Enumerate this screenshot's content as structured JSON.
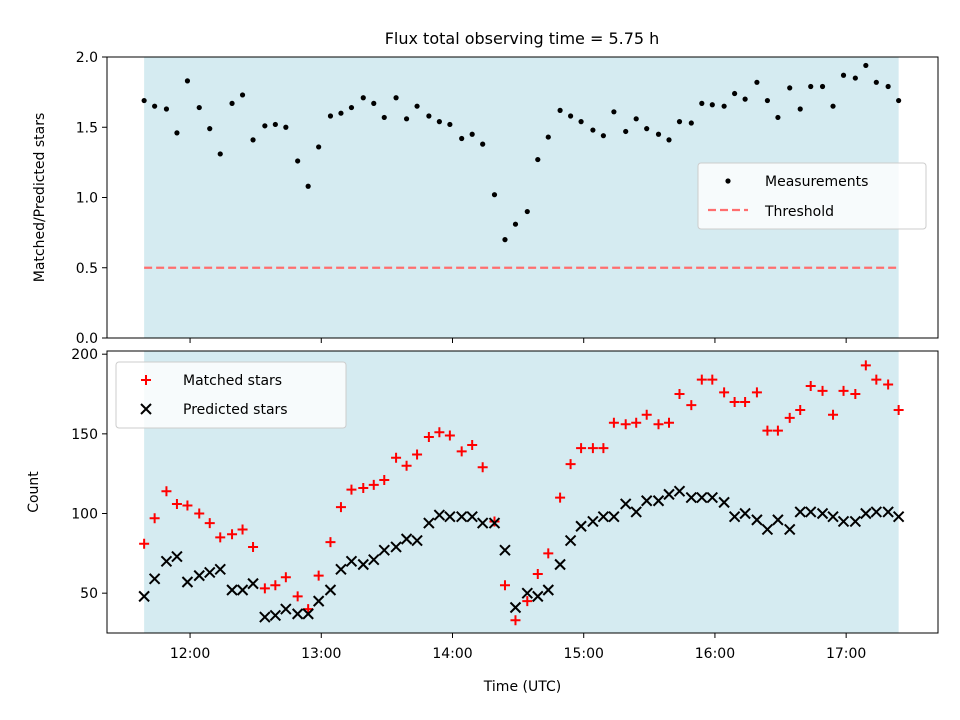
{
  "title": "Flux total observing time = 5.75 h",
  "colors": {
    "background_shade": "#d5ebf1",
    "matched": "#ff0000",
    "predicted": "#000000",
    "threshold": "#ff6e6e",
    "measurements": "#000000"
  },
  "chart_data": [
    {
      "type": "scatter",
      "ylabel": "Matched/Predicted stars",
      "ylim": [
        0,
        2.0
      ],
      "yticks": [
        {
          "v": 0.0,
          "label": "0.0"
        },
        {
          "v": 0.5,
          "label": "0.5"
        },
        {
          "v": 1.0,
          "label": "1.0"
        },
        {
          "v": 1.5,
          "label": "1.5"
        },
        {
          "v": 2.0,
          "label": "2.0"
        }
      ],
      "xlim_hours": [
        11.367,
        17.7
      ],
      "shaded_x_hours": [
        11.65,
        17.4
      ],
      "threshold": 0.5,
      "legend": {
        "position": "center-right",
        "entries": [
          "Measurements",
          "Threshold"
        ]
      },
      "series": [
        {
          "name": "Measurements",
          "marker": "dot",
          "points": [
            [
              11.65,
              1.69
            ],
            [
              11.73,
              1.65
            ],
            [
              11.82,
              1.63
            ],
            [
              11.9,
              1.46
            ],
            [
              11.98,
              1.83
            ],
            [
              12.07,
              1.64
            ],
            [
              12.15,
              1.49
            ],
            [
              12.23,
              1.31
            ],
            [
              12.32,
              1.67
            ],
            [
              12.4,
              1.73
            ],
            [
              12.48,
              1.41
            ],
            [
              12.57,
              1.51
            ],
            [
              12.65,
              1.52
            ],
            [
              12.73,
              1.5
            ],
            [
              12.82,
              1.26
            ],
            [
              12.9,
              1.08
            ],
            [
              12.98,
              1.36
            ],
            [
              13.07,
              1.58
            ],
            [
              13.15,
              1.6
            ],
            [
              13.23,
              1.64
            ],
            [
              13.32,
              1.71
            ],
            [
              13.4,
              1.67
            ],
            [
              13.48,
              1.57
            ],
            [
              13.57,
              1.71
            ],
            [
              13.65,
              1.56
            ],
            [
              13.73,
              1.65
            ],
            [
              13.82,
              1.58
            ],
            [
              13.9,
              1.54
            ],
            [
              13.98,
              1.52
            ],
            [
              14.07,
              1.42
            ],
            [
              14.15,
              1.45
            ],
            [
              14.23,
              1.38
            ],
            [
              14.32,
              1.02
            ],
            [
              14.4,
              0.7
            ],
            [
              14.48,
              0.81
            ],
            [
              14.57,
              0.9
            ],
            [
              14.65,
              1.27
            ],
            [
              14.73,
              1.43
            ],
            [
              14.82,
              1.62
            ],
            [
              14.9,
              1.58
            ],
            [
              14.98,
              1.54
            ],
            [
              15.07,
              1.48
            ],
            [
              15.15,
              1.44
            ],
            [
              15.23,
              1.61
            ],
            [
              15.32,
              1.47
            ],
            [
              15.4,
              1.56
            ],
            [
              15.48,
              1.49
            ],
            [
              15.57,
              1.45
            ],
            [
              15.65,
              1.41
            ],
            [
              15.73,
              1.54
            ],
            [
              15.82,
              1.53
            ],
            [
              15.9,
              1.67
            ],
            [
              15.98,
              1.66
            ],
            [
              16.07,
              1.65
            ],
            [
              16.15,
              1.74
            ],
            [
              16.23,
              1.7
            ],
            [
              16.32,
              1.82
            ],
            [
              16.4,
              1.69
            ],
            [
              16.48,
              1.57
            ],
            [
              16.57,
              1.78
            ],
            [
              16.65,
              1.63
            ],
            [
              16.73,
              1.79
            ],
            [
              16.82,
              1.79
            ],
            [
              16.9,
              1.65
            ],
            [
              16.98,
              1.87
            ],
            [
              17.07,
              1.85
            ],
            [
              17.15,
              1.94
            ],
            [
              17.23,
              1.82
            ],
            [
              17.32,
              1.79
            ],
            [
              17.4,
              1.69
            ]
          ]
        },
        {
          "name": "Threshold",
          "style": "dashed",
          "value": 0.5
        }
      ]
    },
    {
      "type": "scatter",
      "xlabel": "Time (UTC)",
      "ylabel": "Count",
      "ylim": [
        25,
        202
      ],
      "yticks": [
        {
          "v": 50,
          "label": "50"
        },
        {
          "v": 100,
          "label": "100"
        },
        {
          "v": 150,
          "label": "150"
        },
        {
          "v": 200,
          "label": "200"
        }
      ],
      "xticks": [
        {
          "v": 12,
          "label": "12:00"
        },
        {
          "v": 13,
          "label": "13:00"
        },
        {
          "v": 14,
          "label": "14:00"
        },
        {
          "v": 15,
          "label": "15:00"
        },
        {
          "v": 16,
          "label": "16:00"
        },
        {
          "v": 17,
          "label": "17:00"
        }
      ],
      "xlim_hours": [
        11.367,
        17.7
      ],
      "shaded_x_hours": [
        11.65,
        17.4
      ],
      "legend": {
        "position": "top-left",
        "entries": [
          "Matched stars",
          "Predicted stars"
        ]
      },
      "series": [
        {
          "name": "Matched stars",
          "marker": "plus",
          "points": [
            [
              11.65,
              81
            ],
            [
              11.73,
              97
            ],
            [
              11.82,
              114
            ],
            [
              11.9,
              106
            ],
            [
              11.98,
              105
            ],
            [
              12.07,
              100
            ],
            [
              12.15,
              94
            ],
            [
              12.23,
              85
            ],
            [
              12.32,
              87
            ],
            [
              12.4,
              90
            ],
            [
              12.48,
              79
            ],
            [
              12.57,
              53
            ],
            [
              12.65,
              55
            ],
            [
              12.73,
              60
            ],
            [
              12.82,
              48
            ],
            [
              12.9,
              40
            ],
            [
              12.98,
              61
            ],
            [
              13.07,
              82
            ],
            [
              13.15,
              104
            ],
            [
              13.23,
              115
            ],
            [
              13.32,
              116
            ],
            [
              13.4,
              118
            ],
            [
              13.48,
              121
            ],
            [
              13.57,
              135
            ],
            [
              13.65,
              130
            ],
            [
              13.73,
              137
            ],
            [
              13.82,
              148
            ],
            [
              13.9,
              151
            ],
            [
              13.98,
              149
            ],
            [
              14.07,
              139
            ],
            [
              14.15,
              143
            ],
            [
              14.23,
              129
            ],
            [
              14.32,
              95
            ],
            [
              14.4,
              55
            ],
            [
              14.48,
              33
            ],
            [
              14.57,
              45
            ],
            [
              14.65,
              62
            ],
            [
              14.73,
              75
            ],
            [
              14.82,
              110
            ],
            [
              14.9,
              131
            ],
            [
              14.98,
              141
            ],
            [
              15.07,
              141
            ],
            [
              15.15,
              141
            ],
            [
              15.23,
              157
            ],
            [
              15.32,
              156
            ],
            [
              15.4,
              157
            ],
            [
              15.48,
              162
            ],
            [
              15.57,
              156
            ],
            [
              15.65,
              157
            ],
            [
              15.73,
              175
            ],
            [
              15.82,
              168
            ],
            [
              15.9,
              184
            ],
            [
              15.98,
              184
            ],
            [
              16.07,
              176
            ],
            [
              16.15,
              170
            ],
            [
              16.23,
              170
            ],
            [
              16.32,
              176
            ],
            [
              16.4,
              152
            ],
            [
              16.48,
              152
            ],
            [
              16.57,
              160
            ],
            [
              16.65,
              165
            ],
            [
              16.73,
              180
            ],
            [
              16.82,
              177
            ],
            [
              16.9,
              162
            ],
            [
              16.98,
              177
            ],
            [
              17.07,
              175
            ],
            [
              17.15,
              193
            ],
            [
              17.23,
              184
            ],
            [
              17.32,
              181
            ],
            [
              17.4,
              165
            ]
          ]
        },
        {
          "name": "Predicted stars",
          "marker": "x",
          "points": [
            [
              11.65,
              48
            ],
            [
              11.73,
              59
            ],
            [
              11.82,
              70
            ],
            [
              11.9,
              73
            ],
            [
              11.98,
              57
            ],
            [
              12.07,
              61
            ],
            [
              12.15,
              63
            ],
            [
              12.23,
              65
            ],
            [
              12.32,
              52
            ],
            [
              12.4,
              52
            ],
            [
              12.48,
              56
            ],
            [
              12.57,
              35
            ],
            [
              12.65,
              36
            ],
            [
              12.73,
              40
            ],
            [
              12.82,
              37
            ],
            [
              12.9,
              37
            ],
            [
              12.98,
              45
            ],
            [
              13.07,
              52
            ],
            [
              13.15,
              65
            ],
            [
              13.23,
              70
            ],
            [
              13.32,
              68
            ],
            [
              13.4,
              71
            ],
            [
              13.48,
              77
            ],
            [
              13.57,
              79
            ],
            [
              13.65,
              84
            ],
            [
              13.73,
              83
            ],
            [
              13.82,
              94
            ],
            [
              13.9,
              99
            ],
            [
              13.98,
              98
            ],
            [
              14.07,
              98
            ],
            [
              14.15,
              98
            ],
            [
              14.23,
              94
            ],
            [
              14.32,
              94
            ],
            [
              14.4,
              77
            ],
            [
              14.48,
              41
            ],
            [
              14.57,
              50
            ],
            [
              14.65,
              48
            ],
            [
              14.73,
              52
            ],
            [
              14.82,
              68
            ],
            [
              14.9,
              83
            ],
            [
              14.98,
              92
            ],
            [
              15.07,
              95
            ],
            [
              15.15,
              98
            ],
            [
              15.23,
              98
            ],
            [
              15.32,
              106
            ],
            [
              15.4,
              101
            ],
            [
              15.48,
              108
            ],
            [
              15.57,
              108
            ],
            [
              15.65,
              112
            ],
            [
              15.73,
              114
            ],
            [
              15.82,
              110
            ],
            [
              15.9,
              110
            ],
            [
              15.98,
              110
            ],
            [
              16.07,
              107
            ],
            [
              16.15,
              98
            ],
            [
              16.23,
              100
            ],
            [
              16.32,
              96
            ],
            [
              16.4,
              90
            ],
            [
              16.48,
              96
            ],
            [
              16.57,
              90
            ],
            [
              16.65,
              101
            ],
            [
              16.73,
              101
            ],
            [
              16.82,
              100
            ],
            [
              16.9,
              98
            ],
            [
              16.98,
              95
            ],
            [
              17.07,
              95
            ],
            [
              17.15,
              100
            ],
            [
              17.23,
              101
            ],
            [
              17.32,
              101
            ],
            [
              17.4,
              98
            ]
          ]
        }
      ]
    }
  ]
}
